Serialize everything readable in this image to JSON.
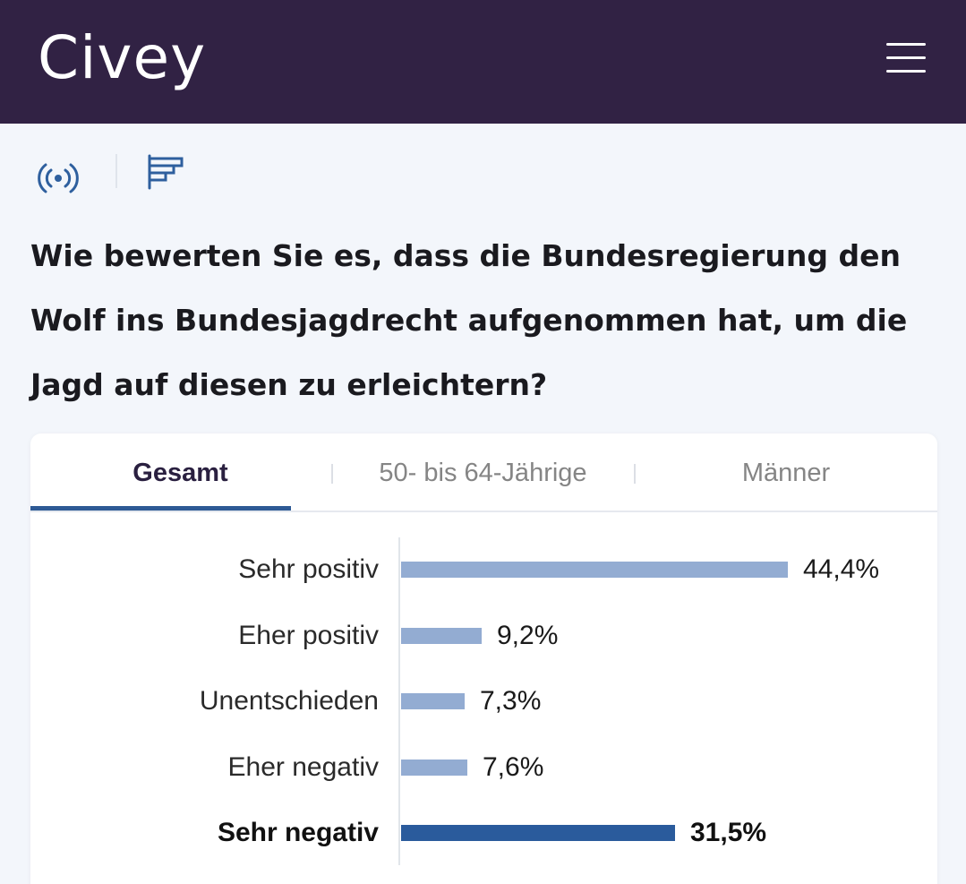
{
  "header": {
    "logo_text": "Civey",
    "menu_icon": "hamburger-menu-icon"
  },
  "toolbar": {
    "live_icon": "broadcast-icon",
    "chart_icon": "bar-chart-icon"
  },
  "question": {
    "text": "Wie bewerten Sie es, dass die Bundesregierung den Wolf ins Bundesjagdrecht aufgenommen hat, um die Jagd auf diesen zu erleichtern?"
  },
  "tabs": [
    {
      "label": "Gesamt",
      "active": true
    },
    {
      "label": "50- bis 64-Jährige",
      "active": false
    },
    {
      "label": "Männer",
      "active": false
    }
  ],
  "chart_data": {
    "type": "bar",
    "orientation": "horizontal",
    "categories": [
      "Sehr positiv",
      "Eher positiv",
      "Unentschieden",
      "Eher negativ",
      "Sehr negativ"
    ],
    "values": [
      44.4,
      9.2,
      7.3,
      7.6,
      31.5
    ],
    "value_labels": [
      "44,4%",
      "9,2%",
      "7,3%",
      "7,6%",
      "31,5%"
    ],
    "unit": "%",
    "highlighted_category": "Sehr negativ",
    "xlim": [
      0,
      44.4
    ]
  },
  "colors": {
    "header_bg": "#312244",
    "bar_default": "#93acd2",
    "bar_highlight": "#2a5b9c",
    "accent": "#2e5a95"
  }
}
